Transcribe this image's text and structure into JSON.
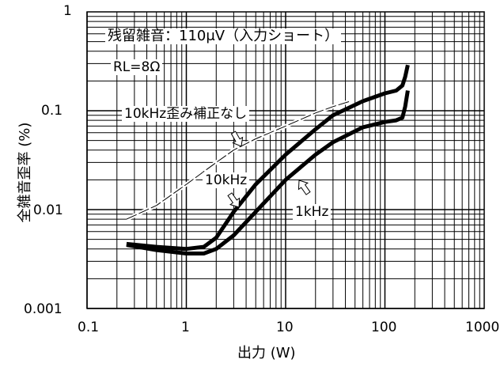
{
  "chart_data": {
    "type": "line",
    "title": "",
    "xlabel": "出力 (W)",
    "ylabel": "全雑音歪率 (%)",
    "xscale": "log",
    "yscale": "log",
    "xlim": [
      0.1,
      1000
    ],
    "ylim": [
      0.001,
      1
    ],
    "xticks": [
      "0.1",
      "1",
      "10",
      "100",
      "1000"
    ],
    "yticks": [
      "1",
      "0.1",
      "0.01",
      "0.001"
    ],
    "grid": true,
    "annotations": [
      "残留雑音：110μV（入力ショート）",
      "RL=8Ω"
    ],
    "series": [
      {
        "name": "10kHz",
        "style": "thick",
        "x": [
          0.25,
          0.5,
          1,
          1.5,
          2,
          3,
          5,
          10,
          20,
          30,
          60,
          100,
          130,
          150,
          160,
          170
        ],
        "y": [
          0.0045,
          0.0042,
          0.004,
          0.0042,
          0.0052,
          0.0095,
          0.018,
          0.036,
          0.065,
          0.09,
          0.125,
          0.15,
          0.16,
          0.18,
          0.22,
          0.29
        ]
      },
      {
        "name": "1kHz",
        "style": "thick",
        "x": [
          0.25,
          0.5,
          1,
          1.5,
          2,
          3,
          5,
          10,
          20,
          30,
          60,
          100,
          130,
          150,
          160,
          170
        ],
        "y": [
          0.0044,
          0.0039,
          0.0036,
          0.0036,
          0.004,
          0.0055,
          0.0095,
          0.02,
          0.036,
          0.048,
          0.068,
          0.077,
          0.08,
          0.085,
          0.11,
          0.16
        ]
      },
      {
        "name": "10kHz歪み補正なし",
        "style": "thin",
        "x": [
          0.25,
          0.5,
          1,
          2,
          3,
          5,
          10,
          20,
          30,
          45
        ],
        "y": [
          0.008,
          0.011,
          0.018,
          0.03,
          0.04,
          0.052,
          0.07,
          0.095,
          0.11,
          0.125
        ]
      }
    ],
    "series_labels": {
      "s0": "10kHz",
      "s1": "1kHz",
      "s2": "10kHz歪み補正なし"
    }
  }
}
